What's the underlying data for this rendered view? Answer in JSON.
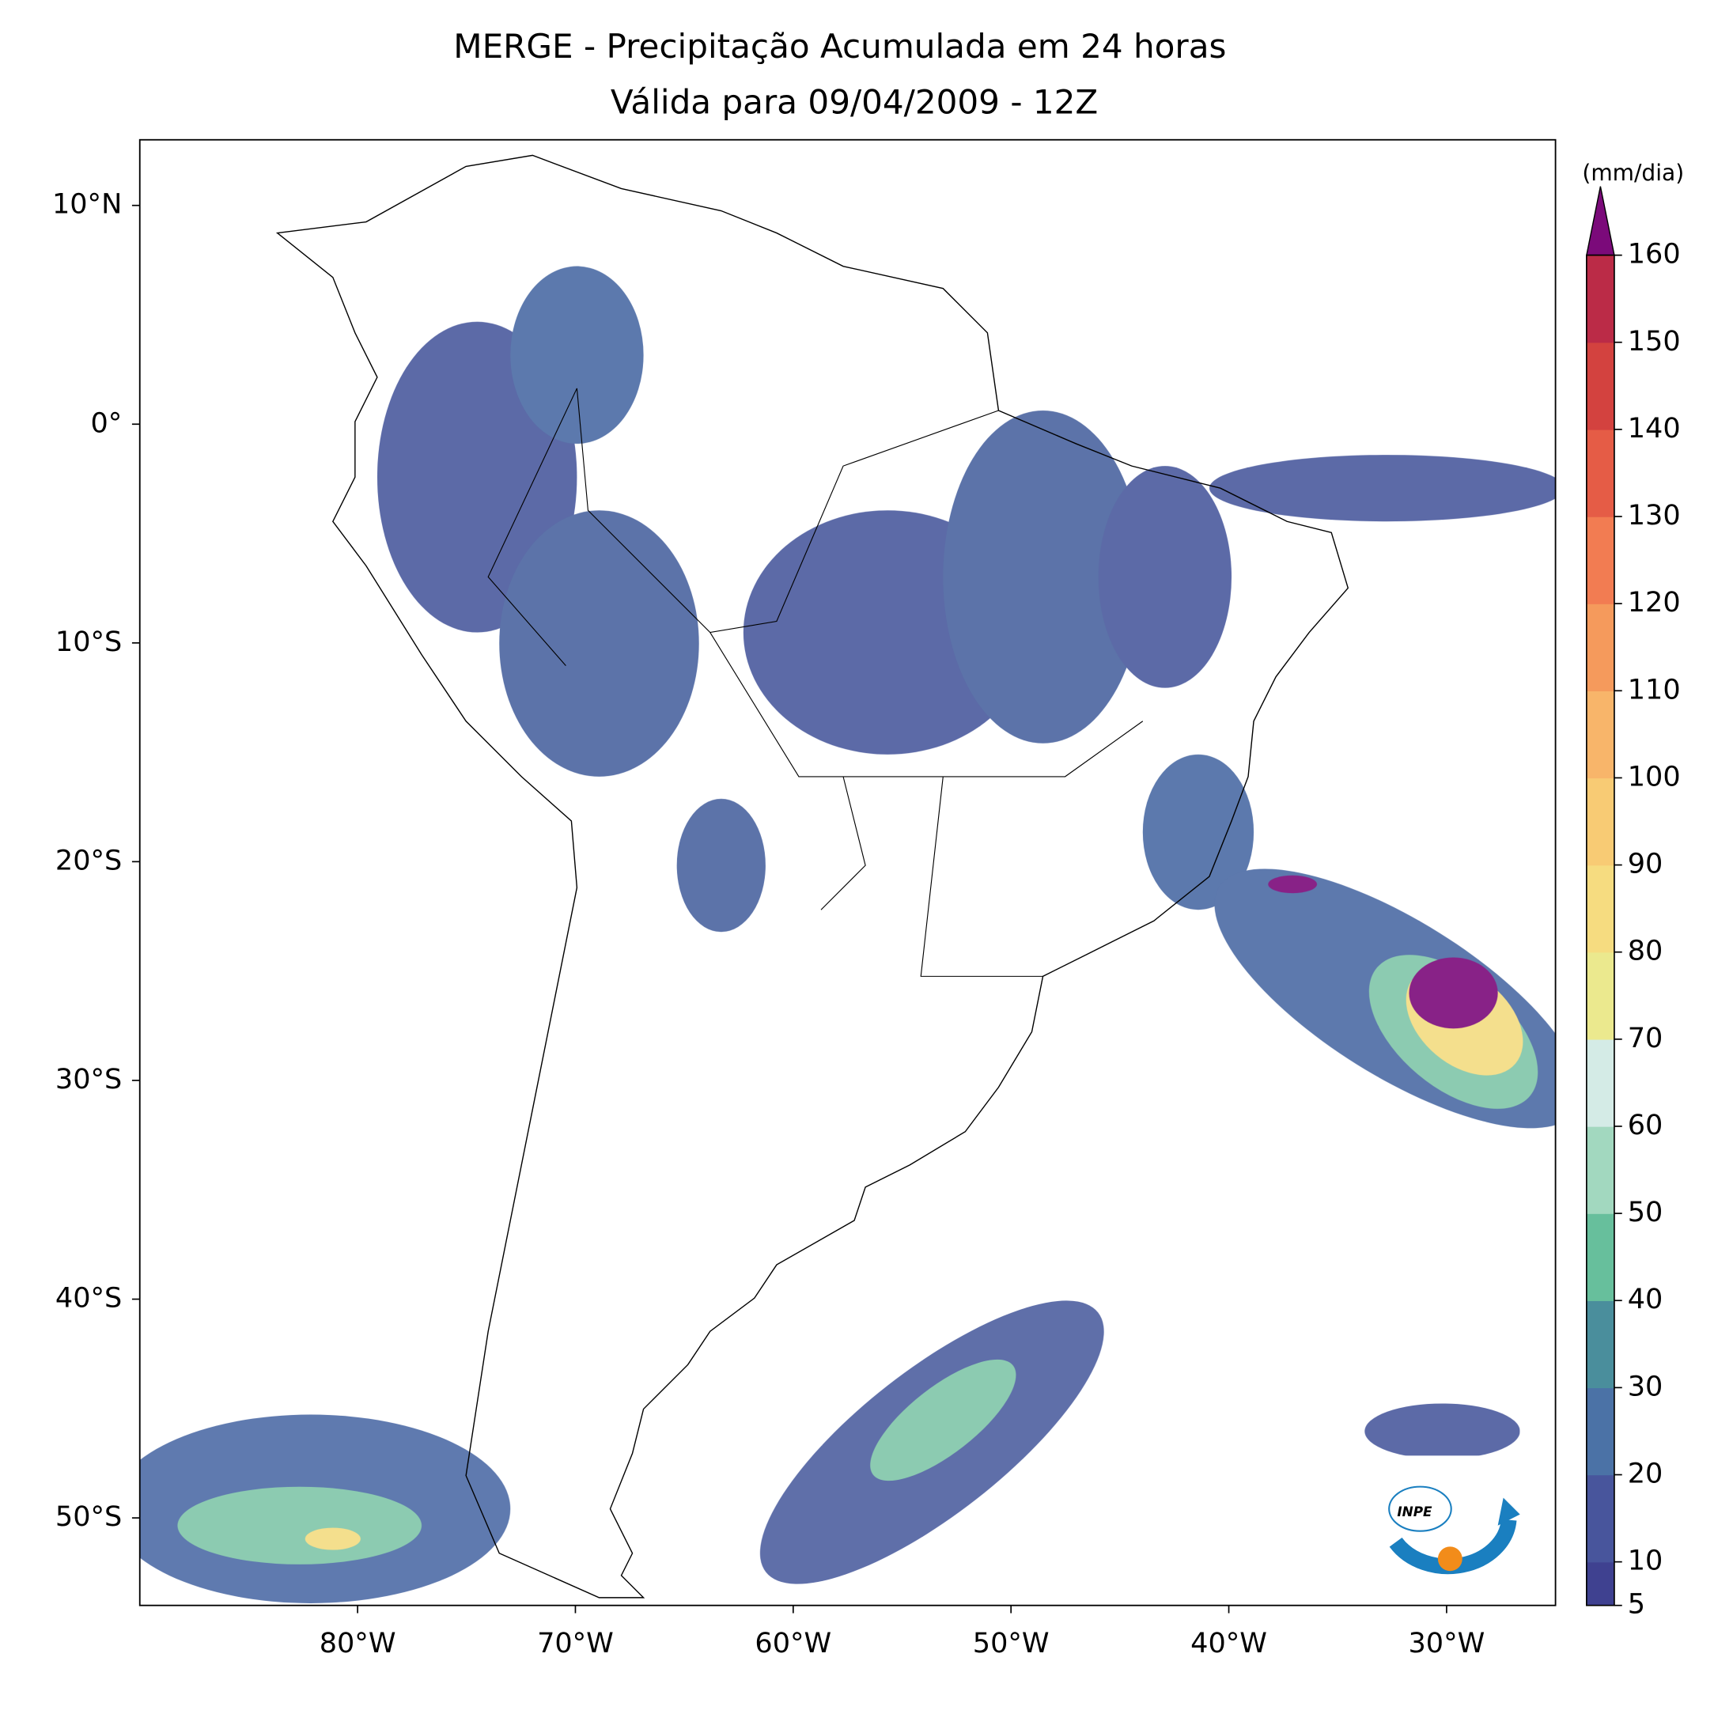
{
  "chart_data": {
    "type": "map",
    "title": "MERGE - Precipitação Acumulada em 24 horas",
    "subtitle": "Válida para 09/04/2009 - 12Z",
    "xlim": [
      -90,
      -25
    ],
    "ylim": [
      -54,
      13
    ],
    "xticks": [
      {
        "value": -80,
        "label": "80°W"
      },
      {
        "value": -70,
        "label": "70°W"
      },
      {
        "value": -60,
        "label": "60°W"
      },
      {
        "value": -50,
        "label": "50°W"
      },
      {
        "value": -40,
        "label": "40°W"
      },
      {
        "value": -30,
        "label": "30°W"
      }
    ],
    "yticks": [
      {
        "value": 10,
        "label": "10°N"
      },
      {
        "value": 0,
        "label": "0°"
      },
      {
        "value": -10,
        "label": "10°S"
      },
      {
        "value": -20,
        "label": "20°S"
      },
      {
        "value": -30,
        "label": "30°S"
      },
      {
        "value": -40,
        "label": "40°S"
      },
      {
        "value": -50,
        "label": "50°S"
      }
    ],
    "colorbar": {
      "label": "(mm/dia)",
      "lim": [
        5,
        160
      ],
      "ticks": [
        5,
        10,
        20,
        30,
        40,
        50,
        60,
        70,
        80,
        90,
        100,
        110,
        120,
        130,
        140,
        150,
        160
      ],
      "colors": [
        "#3f4190",
        "#48559c",
        "#4b72a6",
        "#4a8e9c",
        "#67bf9c",
        "#a2d8bf",
        "#d4ebe6",
        "#ebe98e",
        "#f6dc80",
        "#f8cb74",
        "#f8b56a",
        "#f59a5c",
        "#f27c52",
        "#e55c46",
        "#d3423f",
        "#bb2b47",
        "#9e1850"
      ],
      "extend_color": "#7b0a7a"
    },
    "logo_text": "INPE"
  }
}
